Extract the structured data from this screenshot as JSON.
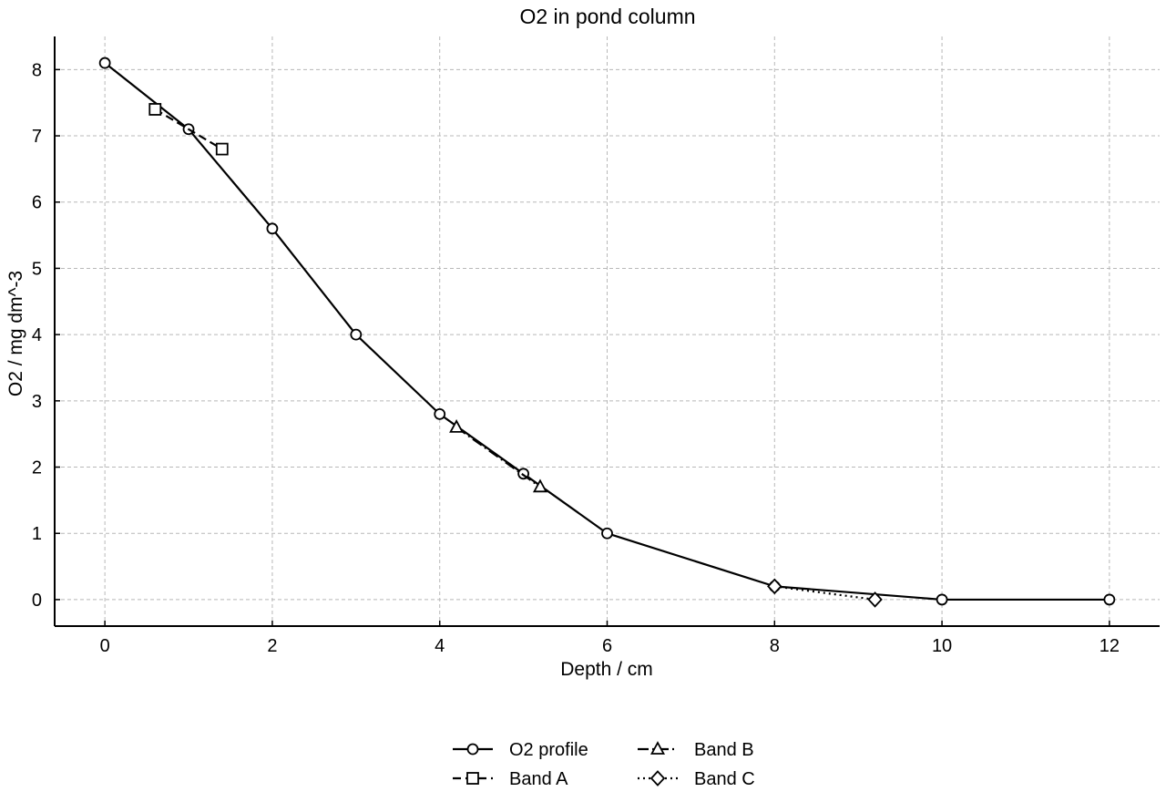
{
  "chart_data": {
    "type": "line",
    "title": "O2 in pond column",
    "xlabel": "Depth / cm",
    "ylabel": "O2 / mg dm^-3",
    "xlim": [
      -0.6,
      12.6
    ],
    "ylim": [
      -0.4,
      8.5
    ],
    "xticks": [
      0,
      2,
      4,
      6,
      8,
      10,
      12
    ],
    "yticks": [
      0,
      1,
      2,
      3,
      4,
      5,
      6,
      7,
      8
    ],
    "grid": true,
    "legend_position": "bottom-center",
    "series": [
      {
        "name": "O2 profile",
        "marker": "circle",
        "line_style": "solid",
        "color": "#000000",
        "points": [
          {
            "x": 0,
            "y": 8.1
          },
          {
            "x": 1,
            "y": 7.1
          },
          {
            "x": 2,
            "y": 5.6
          },
          {
            "x": 3,
            "y": 4.0
          },
          {
            "x": 4,
            "y": 2.8
          },
          {
            "x": 5,
            "y": 1.9
          },
          {
            "x": 6,
            "y": 1.0
          },
          {
            "x": 8,
            "y": 0.2
          },
          {
            "x": 10,
            "y": 0.0
          },
          {
            "x": 12,
            "y": 0.0
          }
        ]
      },
      {
        "name": "Band A",
        "marker": "square",
        "line_style": "dashed",
        "color": "#000000",
        "points": [
          {
            "x": 0.6,
            "y": 7.4
          },
          {
            "x": 1.4,
            "y": 6.8
          }
        ]
      },
      {
        "name": "Band B",
        "marker": "triangle",
        "line_style": "dashdot",
        "color": "#000000",
        "points": [
          {
            "x": 4.2,
            "y": 2.6
          },
          {
            "x": 5.2,
            "y": 1.7
          }
        ]
      },
      {
        "name": "Band C",
        "marker": "diamond",
        "line_style": "dotted",
        "color": "#000000",
        "points": [
          {
            "x": 8.0,
            "y": 0.2
          },
          {
            "x": 9.2,
            "y": 0.0
          }
        ]
      }
    ]
  }
}
